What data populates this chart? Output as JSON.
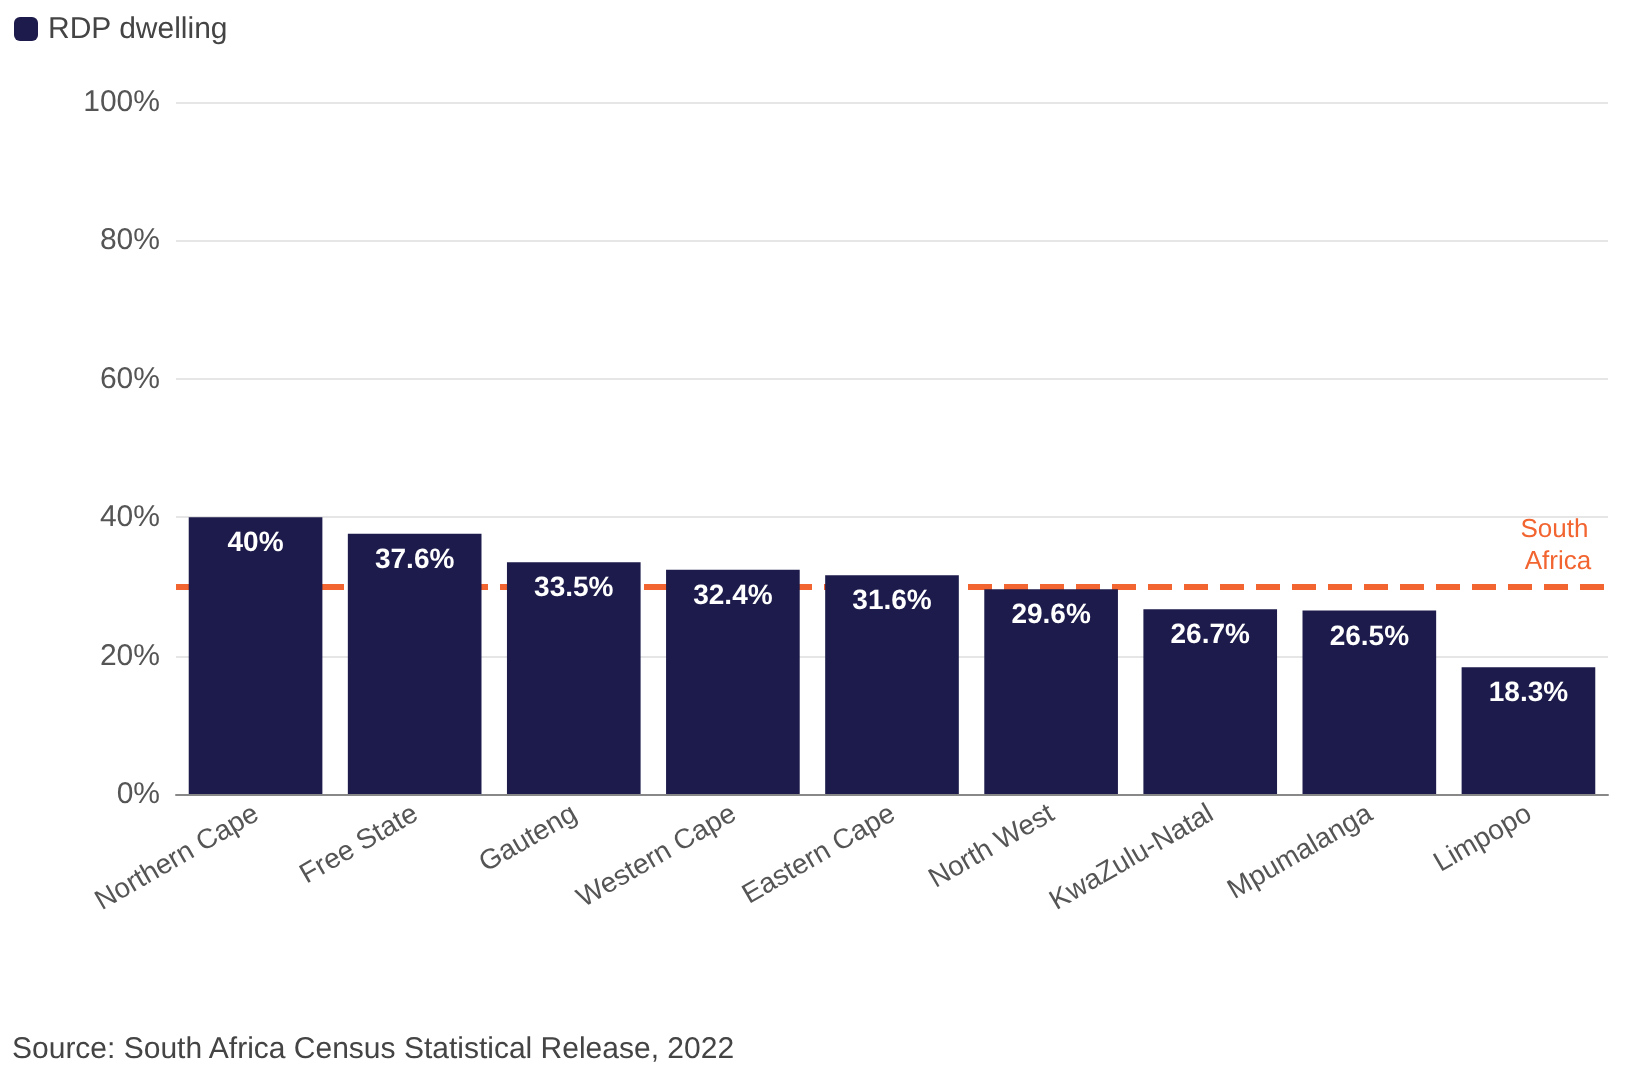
{
  "chart_data": {
    "type": "bar",
    "categories": [
      "Northern Cape",
      "Free State",
      "Gauteng",
      "Western Cape",
      "Eastern Cape",
      "North West",
      "KwaZulu-Natal",
      "Mpumalanga",
      "Limpopo"
    ],
    "series": [
      {
        "name": "RDP dwelling",
        "color": "#1c1b4b",
        "values": [
          40,
          37.6,
          33.5,
          32.4,
          31.6,
          29.6,
          26.7,
          26.5,
          18.3
        ],
        "value_labels": [
          "40%",
          "37.6%",
          "33.5%",
          "32.4%",
          "31.6%",
          "29.6%",
          "26.7%",
          "26.5%",
          "18.3%"
        ]
      }
    ],
    "ylim": [
      0,
      100
    ],
    "yticks": [
      {
        "value": 0,
        "label": "0%"
      },
      {
        "value": 20,
        "label": "20%"
      },
      {
        "value": 40,
        "label": "40%"
      },
      {
        "value": 60,
        "label": "60%"
      },
      {
        "value": 80,
        "label": "80%"
      },
      {
        "value": 100,
        "label": "100%"
      }
    ],
    "grid": "y",
    "legend": "top left",
    "ref_lines": [
      {
        "axis": "y",
        "value": 30,
        "label": "South Africa",
        "color": "#f26430",
        "line_style": "dashed"
      }
    ],
    "annotations": [
      "Source: South Africa Census Statistical Release, 2022"
    ]
  }
}
